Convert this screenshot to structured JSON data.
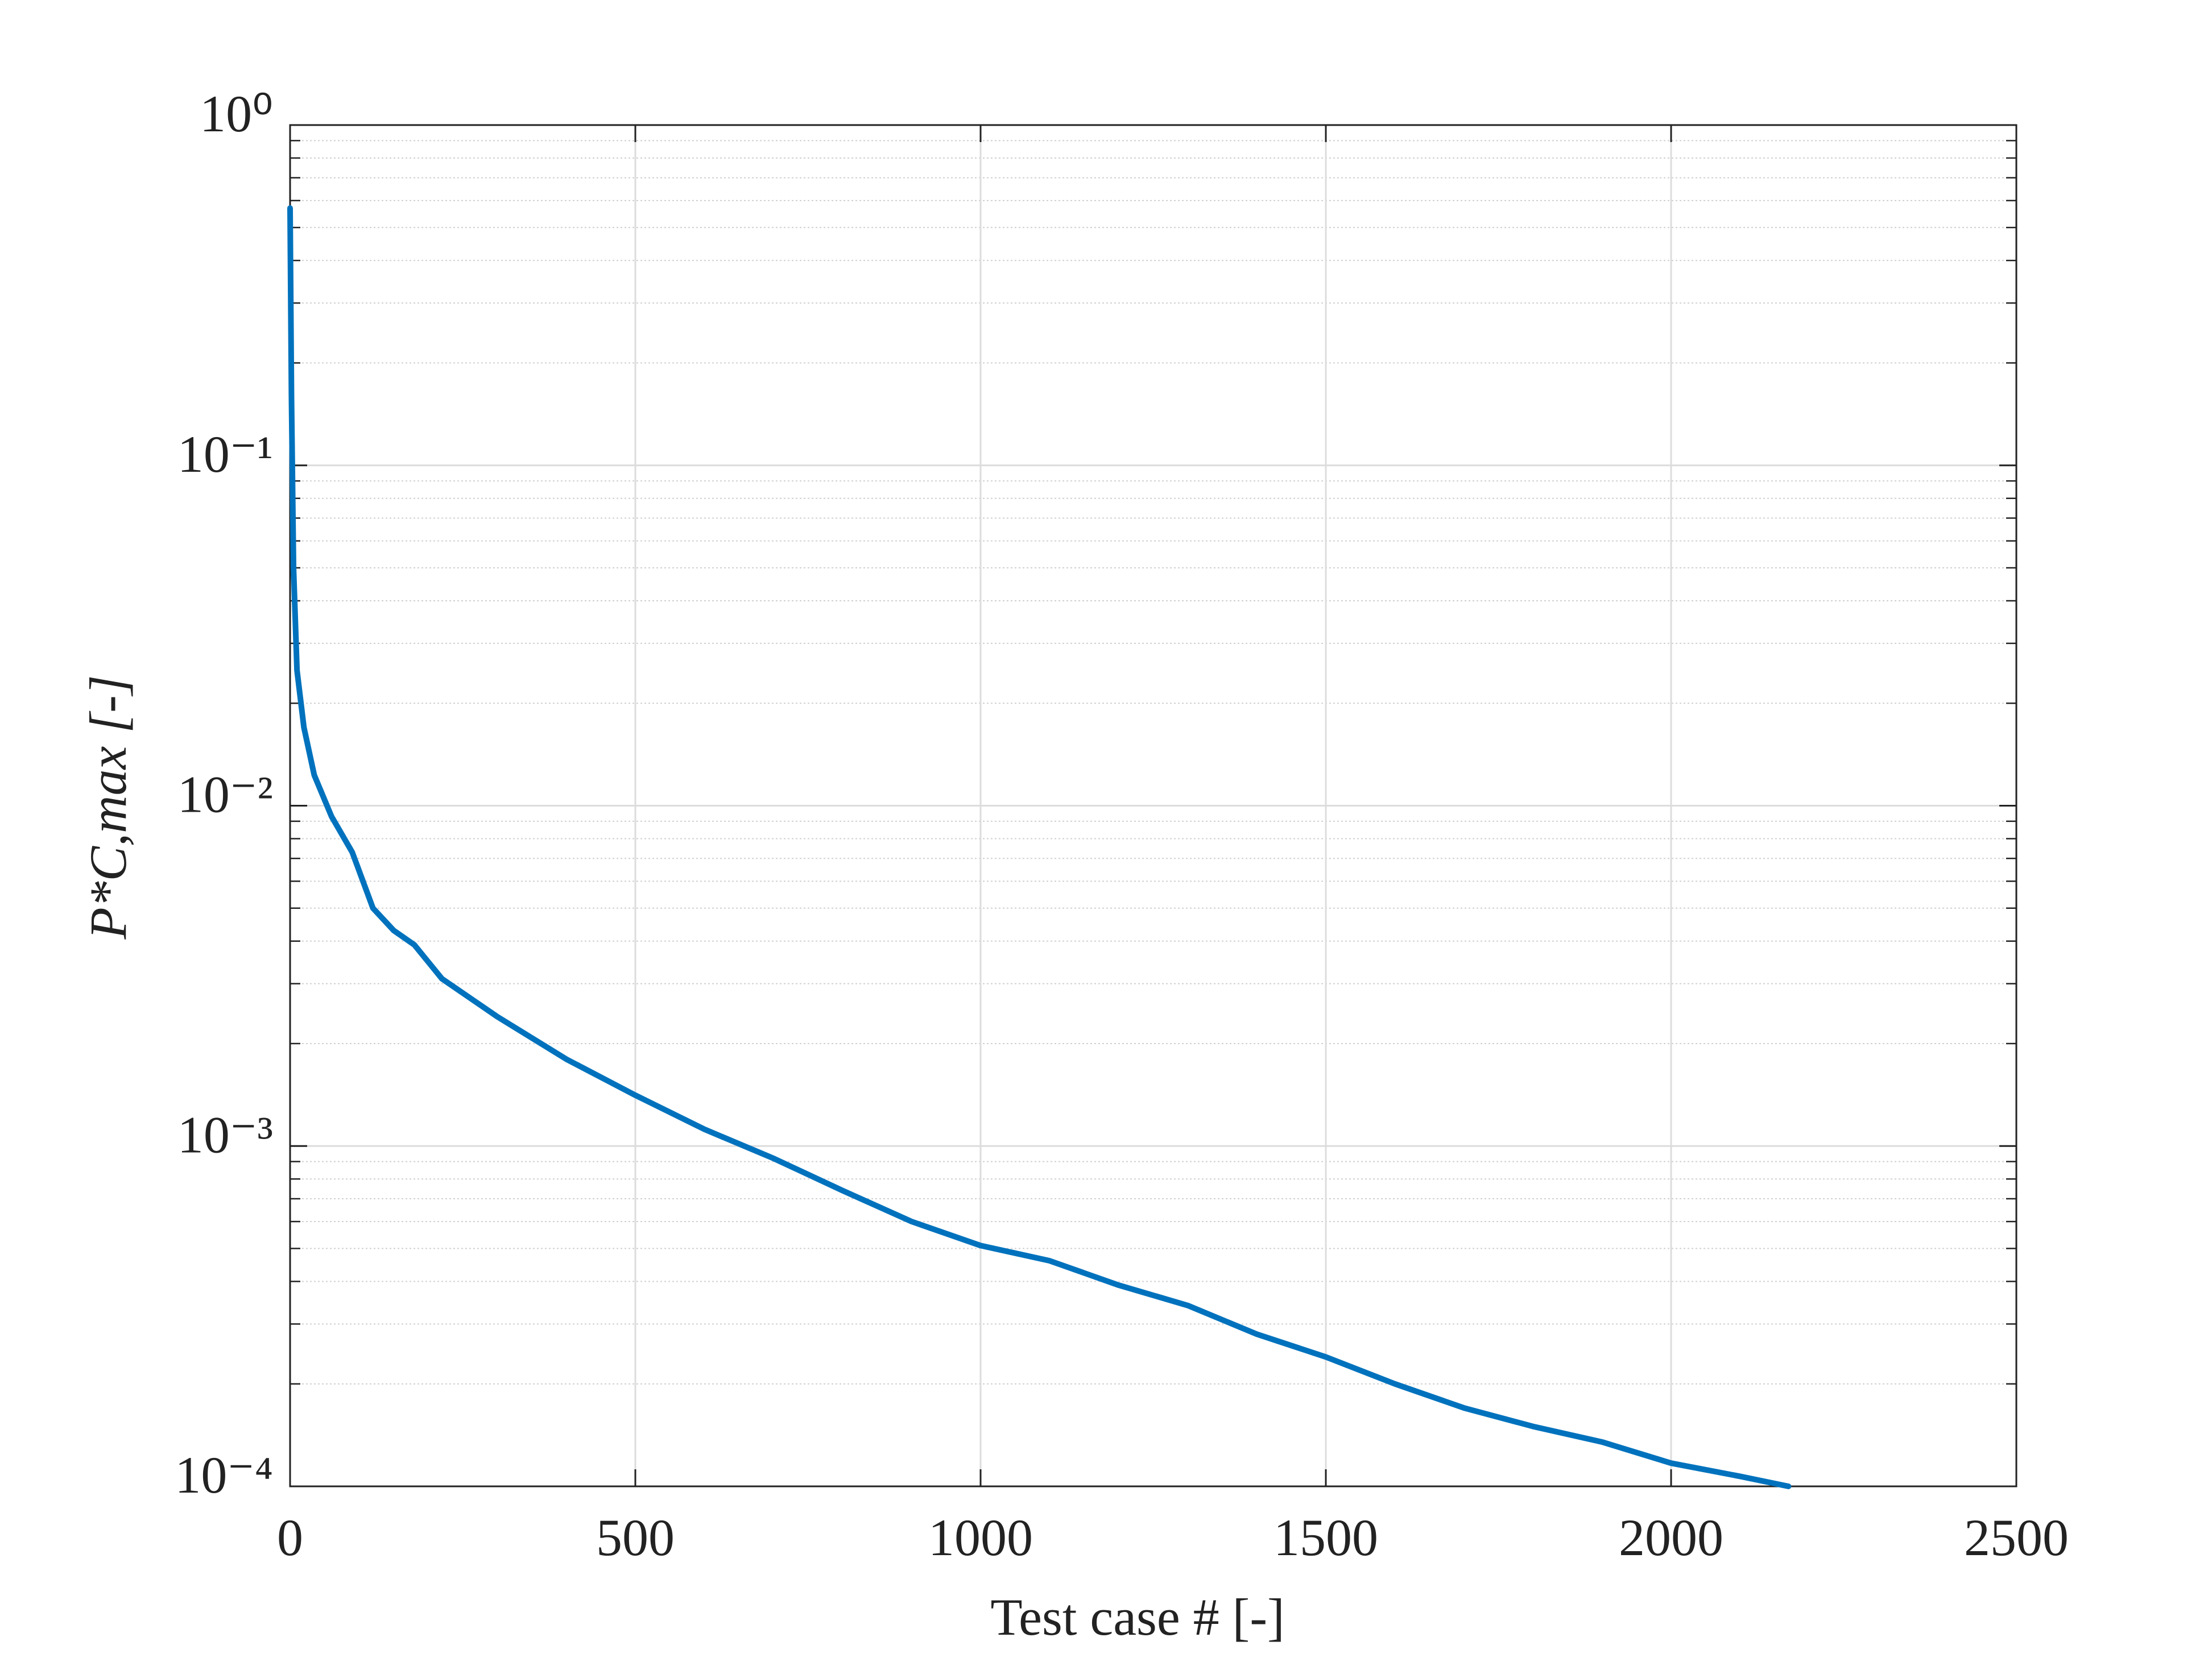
{
  "chart_data": {
    "type": "line",
    "xlabel": "Test case # [-]",
    "ylabel": "P*C,max [-]",
    "x": [
      0,
      2,
      5,
      10,
      20,
      35,
      60,
      90,
      120,
      150,
      180,
      220,
      300,
      400,
      500,
      600,
      700,
      800,
      900,
      1000,
      1100,
      1200,
      1300,
      1400,
      1500,
      1600,
      1700,
      1800,
      1900,
      2000,
      2100,
      2170
    ],
    "series": [
      {
        "color": "#0072bd",
        "values": [
          0.57,
          0.16,
          0.05,
          0.025,
          0.017,
          0.0123,
          0.0093,
          0.0073,
          0.005,
          0.0043,
          0.0039,
          0.0031,
          0.0024,
          0.0018,
          0.00141,
          0.00112,
          0.00092,
          0.00074,
          0.0006,
          0.00051,
          0.00046,
          0.00039,
          0.00034,
          0.00028,
          0.00024,
          0.0002,
          0.00017,
          0.00015,
          0.000135,
          0.000117,
          0.000107,
          0.0001
        ]
      }
    ],
    "xlim": [
      0,
      2500
    ],
    "xticks": [
      0,
      500,
      1000,
      1500,
      2000,
      2500
    ],
    "ylim": [
      0.0001,
      1
    ],
    "yticks": [
      {
        "value": 0.0001,
        "label": "10⁻⁴"
      },
      {
        "value": 0.001,
        "label": "10⁻³"
      },
      {
        "value": 0.01,
        "label": "10⁻²"
      },
      {
        "value": 0.1,
        "label": "10⁻¹"
      },
      {
        "value": 1,
        "label": "10⁰"
      }
    ],
    "yscale": "log",
    "grid": true,
    "minor_grid": true
  }
}
